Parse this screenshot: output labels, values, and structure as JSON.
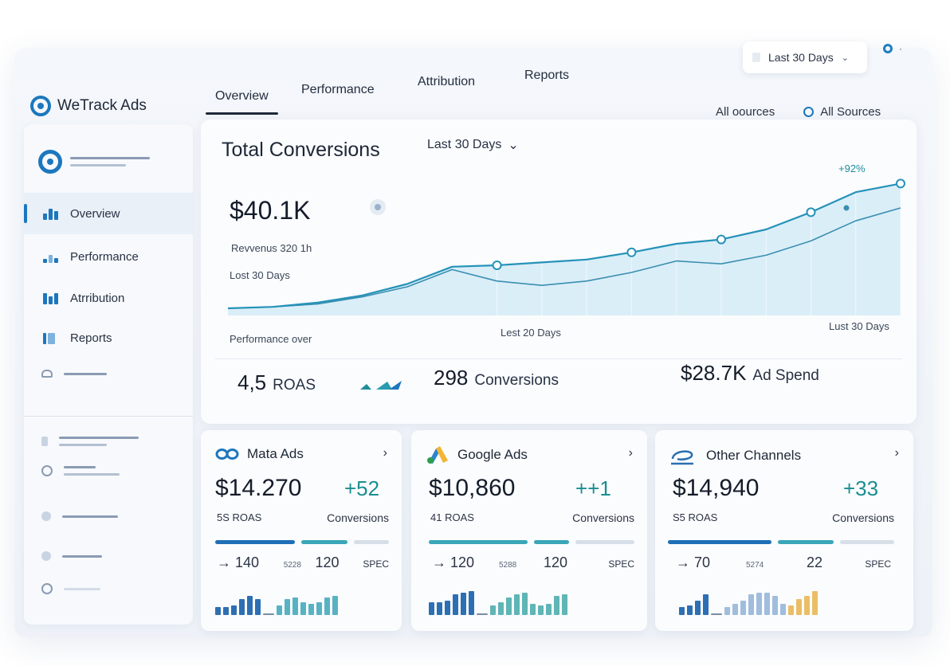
{
  "app": {
    "name": "WeTrack Ads"
  },
  "header": {
    "date_range": "Last 30 Days",
    "filter_all": "All oources",
    "filter_sources": "All Sources"
  },
  "topnav": {
    "tabs": [
      {
        "label": "Overview",
        "active": true
      },
      {
        "label": "Performance"
      },
      {
        "label": "Attribution"
      },
      {
        "label": "Reports"
      }
    ]
  },
  "sidebar": {
    "items": [
      {
        "label": "Overview",
        "icon": "bar-chart-icon",
        "active": true
      },
      {
        "label": "Performance",
        "icon": "performance-icon"
      },
      {
        "label": "Atrribution",
        "icon": "attribution-icon"
      },
      {
        "label": "Reports",
        "icon": "reports-icon"
      }
    ]
  },
  "summary": {
    "title": "Total Conversions",
    "range": "Last 30 Days",
    "value": "$40.1K",
    "sub1": "Revvenus  320 1h",
    "sub2": "Lost 30 Days",
    "delta": "+92%",
    "x_label_left": "Performance  over",
    "x_label_mid": "Lest 20 Days",
    "x_label_right": "Lust 30 Days",
    "stats": {
      "roas": "4,5",
      "roas_label": "ROAS",
      "conversions": "298",
      "conversions_label": "Conversions",
      "spend": "$28.7K",
      "spend_label": "Ad Spend"
    }
  },
  "chart_data": {
    "type": "line",
    "title": "Total Conversions",
    "xlabel": "",
    "ylabel": "",
    "x": [
      0,
      2,
      4,
      6,
      8,
      10,
      12,
      14,
      16,
      18,
      20,
      22,
      24,
      26,
      28,
      30
    ],
    "series": [
      {
        "values": [
          5,
          6,
          9,
          14,
          22,
          34,
          35,
          37,
          39,
          44,
          50,
          53,
          60,
          72,
          86,
          92
        ]
      },
      {
        "values": [
          5,
          6,
          8,
          13,
          20,
          32,
          24,
          21,
          24,
          30,
          38,
          36,
          42,
          52,
          66,
          75
        ]
      }
    ],
    "markers_series1_index": [
      6,
      9,
      11,
      13,
      15
    ],
    "ylim": [
      0,
      100
    ],
    "grid": false,
    "legend": "none",
    "colors": {
      "line1": "#2592b8",
      "line2": "#3a8fb0",
      "fill": "#cfe9f5"
    }
  },
  "channels": [
    {
      "name": "Mata Ads",
      "icon": "meta-logo-icon",
      "value": "$14.270",
      "plus": "+52",
      "roas": "5S ROAS",
      "conv_label": "Conversions",
      "metric1": "→ 140",
      "metric2": "5228",
      "metric3": "120",
      "metric4": "SPEC",
      "spark_colors": [
        "#2d6fb3",
        "#3aa6b8"
      ]
    },
    {
      "name": "Google Ads",
      "icon": "google-ads-logo-icon",
      "value": "$10,860",
      "plus": "++1",
      "roas": "41 ROAS",
      "conv_label": "Conversions",
      "metric1": "→ 120",
      "metric2": "5288",
      "metric3": "120",
      "metric4": "SPEC",
      "spark_colors": [
        "#2d6fb3",
        "#44a8a8"
      ]
    },
    {
      "name": "Other Channels",
      "icon": "other-channels-icon",
      "value": "$14,940",
      "plus": "+33",
      "roas": "S5 ROAS",
      "conv_label": "Conversions",
      "metric1": "→ 70",
      "metric2": "5274",
      "metric3": "22",
      "metric4": "SPEC",
      "spark_colors": [
        "#2d6fb3",
        "#e8b34a"
      ]
    }
  ]
}
